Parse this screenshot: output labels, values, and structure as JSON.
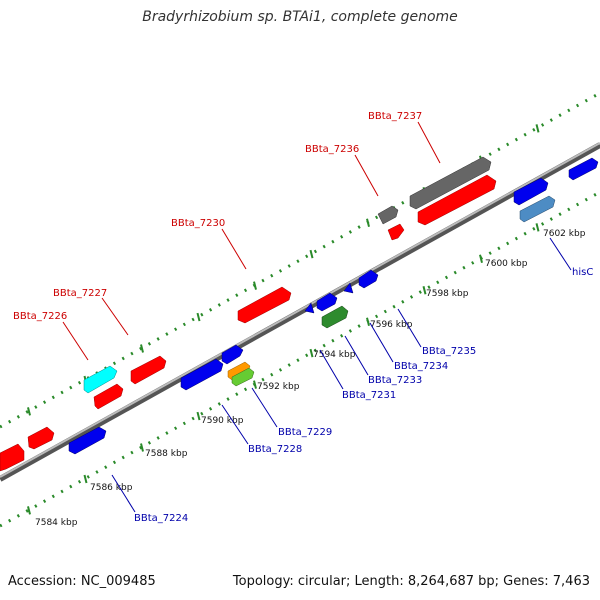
{
  "title": "Bradyrhizobium sp. BTAi1, complete genome",
  "footer": {
    "accession": "Accession: NC_009485",
    "stats": "Topology: circular; Length: 8,264,687 bp; Genes: 7,463"
  },
  "colors": {
    "red": "#ff0000",
    "blue": "#0000ee",
    "cyan": "#00ffff",
    "gray": "#666666",
    "green": "#2e8b2e",
    "steel_blue": "#4d8cc4",
    "orange": "#ff9900",
    "light_green": "#66cc33",
    "dot_green": "#2a8a2a",
    "label_red": "#cc0000",
    "label_blue": "#0000aa"
  },
  "ticks": [
    "7584 kbp",
    "7586 kbp",
    "7588 kbp",
    "7590 kbp",
    "7592 kbp",
    "7594 kbp",
    "7596 kbp",
    "7598 kbp",
    "7600 kbp",
    "7602 kbp"
  ],
  "top_labels": [
    "BBta_7226",
    "BBta_7227",
    "BBta_7230",
    "BBta_7236",
    "BBta_7237"
  ],
  "bottom_labels": [
    "BBta_7224",
    "BBta_7228",
    "BBta_7229",
    "BBta_7231",
    "BBta_7233",
    "BBta_7234",
    "BBta_7235",
    "hisC"
  ]
}
